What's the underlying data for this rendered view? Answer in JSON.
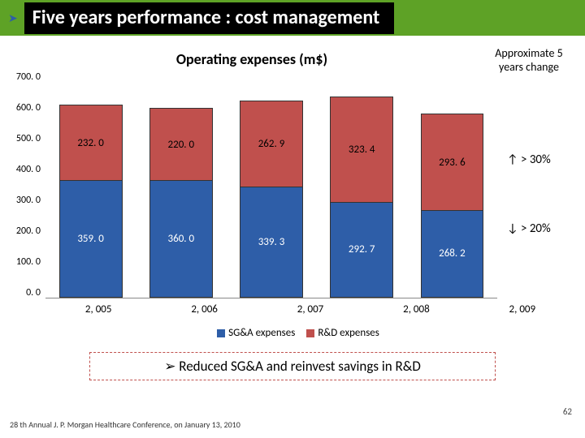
{
  "header": {
    "title": "Five years performance : cost management"
  },
  "chart": {
    "type": "stacked-bar",
    "title": "Operating expenses (m$)",
    "side_note_l1": "Approximate 5",
    "side_note_l2": "years change",
    "ylim": [
      0,
      700
    ],
    "ytick_step": 100,
    "yticks": [
      "700. 0",
      "600. 0",
      "500. 0",
      "400. 0",
      "300. 0",
      "200. 0",
      "100. 0",
      "0. 0"
    ],
    "categories": [
      "2, 005",
      "2, 006",
      "2, 007",
      "2, 008",
      "2, 009"
    ],
    "series": [
      {
        "name": "SG&A expenses",
        "color": "#2e5ea8",
        "values": [
          359.0,
          360.0,
          339.3,
          292.7,
          268.2
        ],
        "labels": [
          "359. 0",
          "360. 0",
          "339. 3",
          "292. 7",
          "268. 2"
        ]
      },
      {
        "name": "R&D expenses",
        "color": "#c0504d",
        "values": [
          232.0,
          220.0,
          262.9,
          323.4,
          293.6
        ],
        "labels": [
          "232. 0",
          "220. 0",
          "262. 9",
          "323. 4",
          "293. 6"
        ]
      }
    ],
    "change": {
      "up": "↑ > 30%",
      "down": "↓ > 20%"
    },
    "background_color": "#ffffff",
    "border_color": "#333333",
    "label_fontsize": 13,
    "title_fontsize": 18
  },
  "legend": {
    "items": [
      {
        "label": "SG&A expenses",
        "color": "#2e5ea8"
      },
      {
        "label": "R&D expenses",
        "color": "#c0504d"
      }
    ]
  },
  "callout": {
    "arrow": "➢",
    "text": "Reduced SG&A and reinvest savings in R&D",
    "border_color": "#c0504d"
  },
  "footer": "28 th Annual J. P. Morgan Healthcare Conference, on January 13, 2010",
  "page_number": "62"
}
